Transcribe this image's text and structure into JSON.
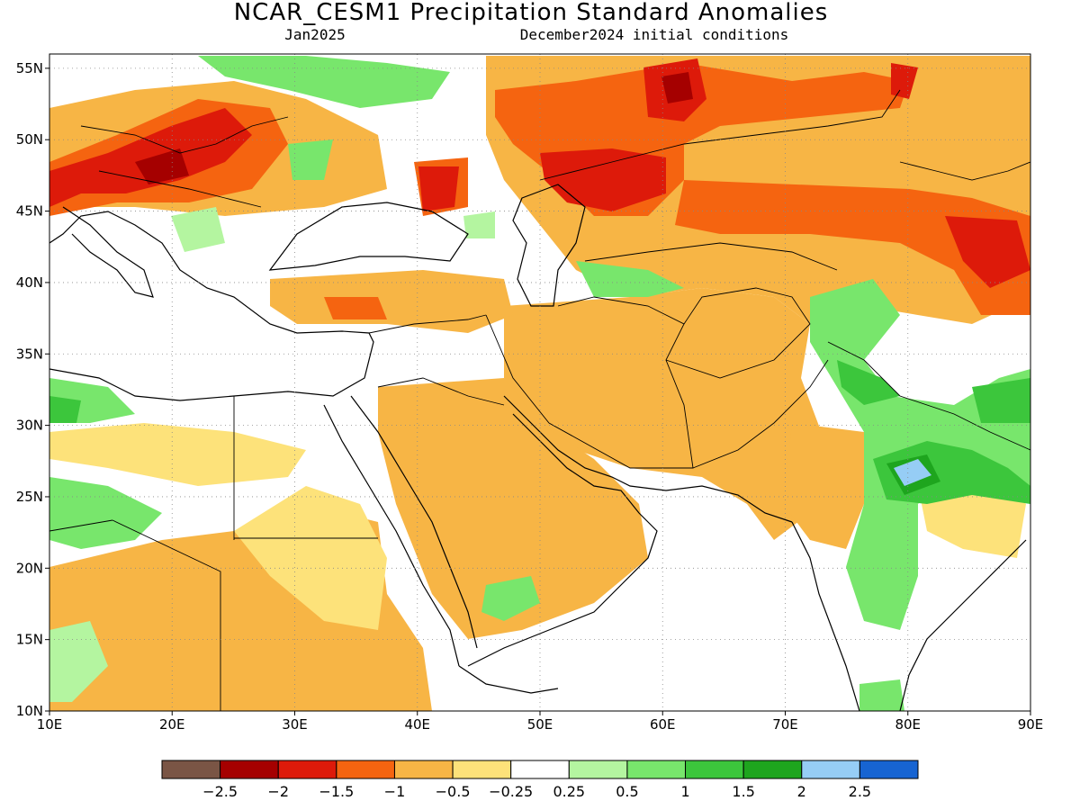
{
  "title": "NCAR_CESM1 Precipitation Standard Anomalies",
  "subtitle_left": "Jan2025",
  "subtitle_right": "December2024 initial conditions",
  "map": {
    "lon_range": [
      10,
      90
    ],
    "lat_range": [
      10,
      56
    ],
    "grid": "dotted",
    "x_ticks": [
      "10E",
      "20E",
      "30E",
      "40E",
      "50E",
      "60E",
      "70E",
      "80E",
      "90E"
    ],
    "y_ticks": [
      "10N",
      "15N",
      "20N",
      "25N",
      "30N",
      "35N",
      "40N",
      "45N",
      "50N",
      "55N"
    ]
  },
  "legend": {
    "colors": [
      "#7a5545",
      "#a50000",
      "#dd1a0a",
      "#f56410",
      "#f7b545",
      "#fde27a",
      "#ffffff",
      "#b4f5a0",
      "#78e66c",
      "#3cc63c",
      "#1ea51e",
      "#96cdf5",
      "#1764d2"
    ],
    "labels": [
      "−2.5",
      "−2",
      "−1.5",
      "−1",
      "−0.5",
      "−0.25",
      "0.25",
      "0.5",
      "1",
      "1.5",
      "2",
      "2.5"
    ]
  }
}
